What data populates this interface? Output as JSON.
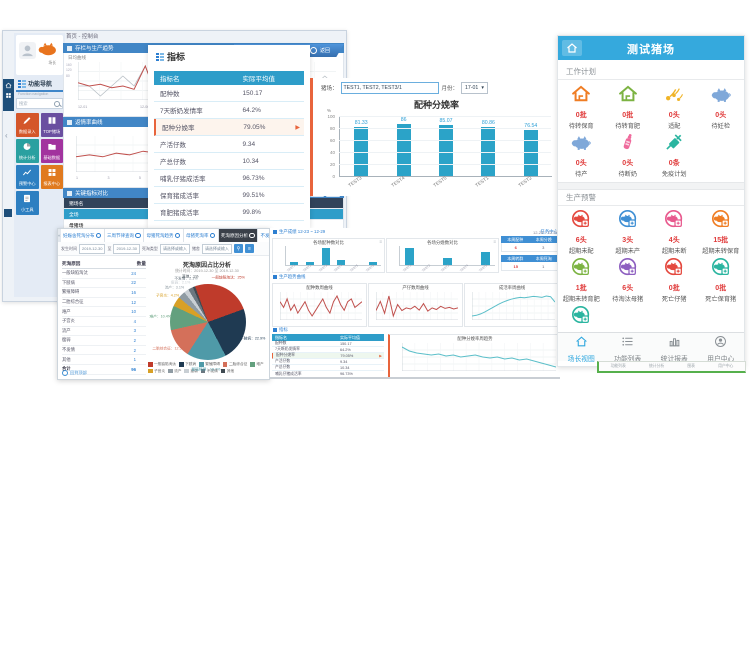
{
  "desktop": {
    "window_title": "首页 - 控制台",
    "banner_label": "返回",
    "user": {
      "role": "场长"
    },
    "nav_header": {
      "title": "功能导航",
      "subtitle": "Function navigation",
      "search_placeholder": "搜索"
    },
    "tiles": [
      {
        "label": "数据录入",
        "color": "#d4562a",
        "icon": "pencil"
      },
      {
        "label": "TOP猪场",
        "color": "#6a4fa0",
        "icon": "book"
      },
      {
        "label": "统计分析",
        "color": "#2aa0a0",
        "icon": "pie"
      },
      {
        "label": "基础数据",
        "color": "#a2339e",
        "icon": "folder"
      },
      {
        "label": "预警中心",
        "color": "#2d7fc1",
        "icon": "line"
      },
      {
        "label": "报表中心",
        "color": "#e07a1f",
        "icon": "grid"
      },
      {
        "label": "小工具",
        "color": "#2d7fc1",
        "icon": "doc"
      }
    ],
    "panels": {
      "p1": {
        "title": "存栏与生产趋势",
        "caption": "日均曲线",
        "x_labels": [
          "12-01",
          "12-06",
          "12-11",
          "12-16",
          "12-21"
        ],
        "pager": "◀ 1/3 ▶",
        "y_labels": [
          "160",
          "120",
          "80"
        ]
      },
      "p2": {
        "title": "返情率曲线",
        "caption": "返情头数曲线",
        "x_labels": [
          "1",
          "3",
          "5",
          "7",
          "9",
          "11",
          "13",
          "15"
        ],
        "pager": "◀ 1/2 ▶",
        "y_labels": [
          "40",
          "30",
          "20"
        ]
      },
      "p3": {
        "title": "关键指标对比",
        "tools": [
          "列表",
          "图表"
        ],
        "columns": [
          "猪场名",
          "本周",
          "环比"
        ],
        "rows": [
          [
            "全场",
            "4.2%",
            "7%"
          ],
          [
            "母猪场",
            "45%",
            "8.3%"
          ],
          [
            "一场(GGP)",
            "24.7%",
            "98"
          ],
          [
            "二场",
            "15.48",
            "—"
          ],
          [
            "保育育肥场",
            "9.64%",
            "—"
          ]
        ]
      }
    }
  },
  "indicators": {
    "title": "指标",
    "columns": [
      "指标名",
      "实际平均值"
    ],
    "rows": [
      [
        "配种数",
        "150.17"
      ],
      [
        "7天断奶发情率",
        "64.2%"
      ],
      [
        "配种分娩率",
        "79.05%"
      ],
      [
        "产活仔数",
        "9.34"
      ],
      [
        "产总仔数",
        "10.34"
      ],
      [
        "哺乳仔猪成活率",
        "96.73%"
      ],
      [
        "保育猪成活率",
        "99.51%"
      ],
      [
        "育肥猪成活率",
        "99.8%"
      ]
    ],
    "highlight_index": 2
  },
  "farrowing": {
    "farm_label": "猪场：",
    "farm_value": "TEST1, TEST2, TEST3/1",
    "month_label": "月份：",
    "month_value": "17-01",
    "title": "配种分娩率",
    "unit": "%"
  },
  "reasons": {
    "tabs": [
      {
        "label": "妊娠舍死淘分布",
        "active": false
      },
      {
        "label": "三周节律查询",
        "active": false
      },
      {
        "label": "母猪死淘趋势",
        "active": false
      },
      {
        "label": "母猪死淘率",
        "active": false
      },
      {
        "label": "死淘原因分析",
        "active": true
      },
      {
        "label": "不发情母猪查询",
        "active": false
      }
    ],
    "filters": {
      "time_label": "发生时间",
      "from": "2019-12-30",
      "to_label": "至",
      "to": "2019-12-30",
      "type_label": "死淘类型",
      "type_value": "请选择或输入",
      "house_label": "猪舍",
      "house_value": "请选择或输入"
    },
    "table": {
      "columns": [
        "死淘原因",
        "数量"
      ],
      "rows": [
        [
          "一般缺陷淘汰",
          "24"
        ],
        [
          "下肢病",
          "22"
        ],
        [
          "繁殖障碍",
          "16"
        ],
        [
          "二胎综合征",
          "12"
        ],
        [
          "难产",
          "10"
        ],
        [
          "子宫炎",
          "4"
        ],
        [
          "流产",
          "3"
        ],
        [
          "瘦弱",
          "2"
        ],
        [
          "不发情",
          "2"
        ],
        [
          "其他",
          "1"
        ]
      ],
      "footer": [
        "合计",
        "96"
      ]
    },
    "back_top": "回到顶部",
    "pie_title": "死淘原因占比分析",
    "pie_subtitle": "统计时间：2019-12-30 至 2019-12-30"
  },
  "cluster": {
    "breadcrumb": "生产成绩 12-23 ~ 12-29",
    "more": "任务中心",
    "s2": "生产趋势曲线",
    "s3": "指标",
    "cards": {
      "A": "各场配种数对比",
      "B": "各场分娩数对比",
      "C": "配种数周曲线",
      "D": "产仔数周曲线",
      "E": "成活率周曲线",
      "F": "配种分娩率周趋势"
    },
    "widget": {
      "top": "12-23 ~ 12-29",
      "h1": [
        "本周配种",
        "本周分娩"
      ],
      "r1": [
        "6",
        "3"
      ],
      "h2": [
        "本周转群",
        "本周死淘"
      ],
      "r2": [
        "15",
        "1"
      ]
    }
  },
  "mobile": {
    "title": "测试猪场",
    "work": {
      "title": "工作计划",
      "items": [
        {
          "count": "0批",
          "label": "待转保育",
          "color": "#ef7d24",
          "icon": "house"
        },
        {
          "count": "0批",
          "label": "待转育肥",
          "color": "#7cb342",
          "icon": "house"
        },
        {
          "count": "0头",
          "label": "适配",
          "color": "#f0b428",
          "icon": "sperm"
        },
        {
          "count": "0头",
          "label": "待妊检",
          "color": "#7fa8d9",
          "icon": "pig"
        },
        {
          "count": "0头",
          "label": "待产",
          "color": "#7fa8d9",
          "icon": "pig"
        },
        {
          "count": "0头",
          "label": "待断奶",
          "color": "#ef6a9c",
          "icon": "bottle"
        },
        {
          "count": "0条",
          "label": "免疫计划",
          "color": "#2bb5a0",
          "icon": "syringe"
        }
      ]
    },
    "warn": {
      "title": "生产预警",
      "items": [
        {
          "count": "6头",
          "label": "超期未配",
          "color": "#e4493f",
          "icon": "ring"
        },
        {
          "count": "3头",
          "label": "超期未产",
          "color": "#3f8fd4",
          "icon": "ring"
        },
        {
          "count": "4头",
          "label": "超期未断",
          "color": "#e85a8e",
          "icon": "ring"
        },
        {
          "count": "15批",
          "label": "超期未转保育",
          "color": "#ef7d24",
          "icon": "ring"
        },
        {
          "count": "1批",
          "label": "超期未转育肥",
          "color": "#7cb342",
          "icon": "ring"
        },
        {
          "count": "6头",
          "label": "待淘汰母猪",
          "color": "#8d5fc0",
          "icon": "ring"
        },
        {
          "count": "0批",
          "label": "死亡仔猪",
          "color": "#e4493f",
          "icon": "ring"
        },
        {
          "count": "0批",
          "label": "死亡保育猪",
          "color": "#2bb5a0",
          "icon": "ring"
        },
        {
          "count": "0批",
          "label": "死亡育肥猪",
          "color": "#2bb5a0",
          "icon": "ring"
        }
      ]
    },
    "nav": [
      {
        "label": "场长视图",
        "icon": "home",
        "active": true
      },
      {
        "label": "功能列表",
        "icon": "list",
        "active": false
      },
      {
        "label": "统计报表",
        "icon": "chart",
        "active": false
      },
      {
        "label": "用户中心",
        "icon": "user",
        "active": false
      }
    ],
    "strip": [
      "功能列表",
      "统计分析",
      "图表",
      "用户中心"
    ]
  },
  "chart_data": {
    "farrowing": {
      "type": "bar",
      "title": "配种分娩率",
      "ylabel": "%",
      "ylim": [
        0,
        100
      ],
      "y_ticks": [
        0,
        20,
        40,
        60,
        80,
        100
      ],
      "categories": [
        "TEST3",
        "TEST4",
        "TEST5",
        "TEST1",
        "TEST2"
      ],
      "values": [
        81.33,
        86,
        85.07,
        80.86,
        76.54
      ]
    },
    "death_reasons_pie": {
      "type": "pie",
      "title": "死淘原因占比分析",
      "slices": [
        {
          "name": "一般缺陷淘汰",
          "value": 25.0,
          "color": "#bf3b2b"
        },
        {
          "name": "下肢病",
          "value": 22.9,
          "color": "#1f3a52"
        },
        {
          "name": "繁殖障碍",
          "value": 16.7,
          "color": "#4f9aa8"
        },
        {
          "name": "二胎综合征",
          "value": 12.5,
          "color": "#d4705a"
        },
        {
          "name": "难产",
          "value": 10.4,
          "color": "#63a07e"
        },
        {
          "name": "子宫炎",
          "value": 4.2,
          "color": "#d8a026"
        },
        {
          "name": "流产",
          "value": 3.1,
          "color": "#8f9ba3"
        },
        {
          "name": "瘦弱",
          "value": 2.1,
          "color": "#c9cfd4"
        },
        {
          "name": "不发情",
          "value": 2.1,
          "color": "#6b7780"
        },
        {
          "name": "其他",
          "value": 1.0,
          "color": "#3f4a52"
        }
      ]
    },
    "barA": {
      "type": "bar",
      "title": "各场配种数对比",
      "categories": [
        "TEST1",
        "TEST2",
        "TEST3",
        "TEST4",
        "TEST5",
        "TEST6"
      ],
      "values": [
        8,
        7,
        46,
        13,
        0,
        9
      ]
    },
    "barB": {
      "type": "bar",
      "title": "各场分娩数对比",
      "categories": [
        "TEST1",
        "TEST2",
        "TEST3",
        "TEST4",
        "TEST5"
      ],
      "values": [
        52,
        0,
        20,
        0,
        40
      ]
    },
    "lines": {
      "d1": [
        62,
        60,
        61,
        59,
        60,
        58,
        72,
        54,
        70,
        57,
        55,
        56,
        57,
        58,
        57,
        56,
        58,
        60,
        58,
        59,
        61,
        60,
        62,
        61
      ],
      "d1b": [
        50,
        50,
        49,
        50,
        51,
        50,
        52,
        49,
        51,
        50,
        49,
        50,
        50,
        51,
        50,
        49,
        50,
        51,
        50,
        50,
        51,
        50,
        51,
        50
      ],
      "d2": [
        34,
        35,
        34,
        36,
        35,
        37,
        36,
        38,
        43,
        39,
        36,
        33,
        31,
        30,
        29,
        29,
        28,
        28
      ],
      "c1": [
        52,
        50,
        53,
        49,
        51,
        48,
        50,
        52,
        49,
        47,
        49,
        51,
        53,
        50,
        48,
        52,
        54,
        51,
        49,
        52,
        53,
        50,
        51,
        52
      ],
      "c2": [
        45,
        62,
        40,
        72,
        35,
        56,
        45,
        50,
        48,
        53,
        46,
        58,
        44,
        50,
        47,
        53,
        49,
        51,
        48,
        50
      ],
      "c3": [
        18,
        20,
        24,
        30,
        37,
        44,
        51,
        57,
        62,
        66,
        69,
        71,
        70,
        72,
        74,
        73,
        71,
        75,
        73,
        58
      ],
      "c4": [
        80,
        76,
        74,
        73,
        72,
        73,
        71,
        72,
        70,
        71,
        72,
        70,
        69,
        70,
        68,
        69,
        67,
        68,
        66,
        64,
        62,
        60
      ]
    }
  }
}
